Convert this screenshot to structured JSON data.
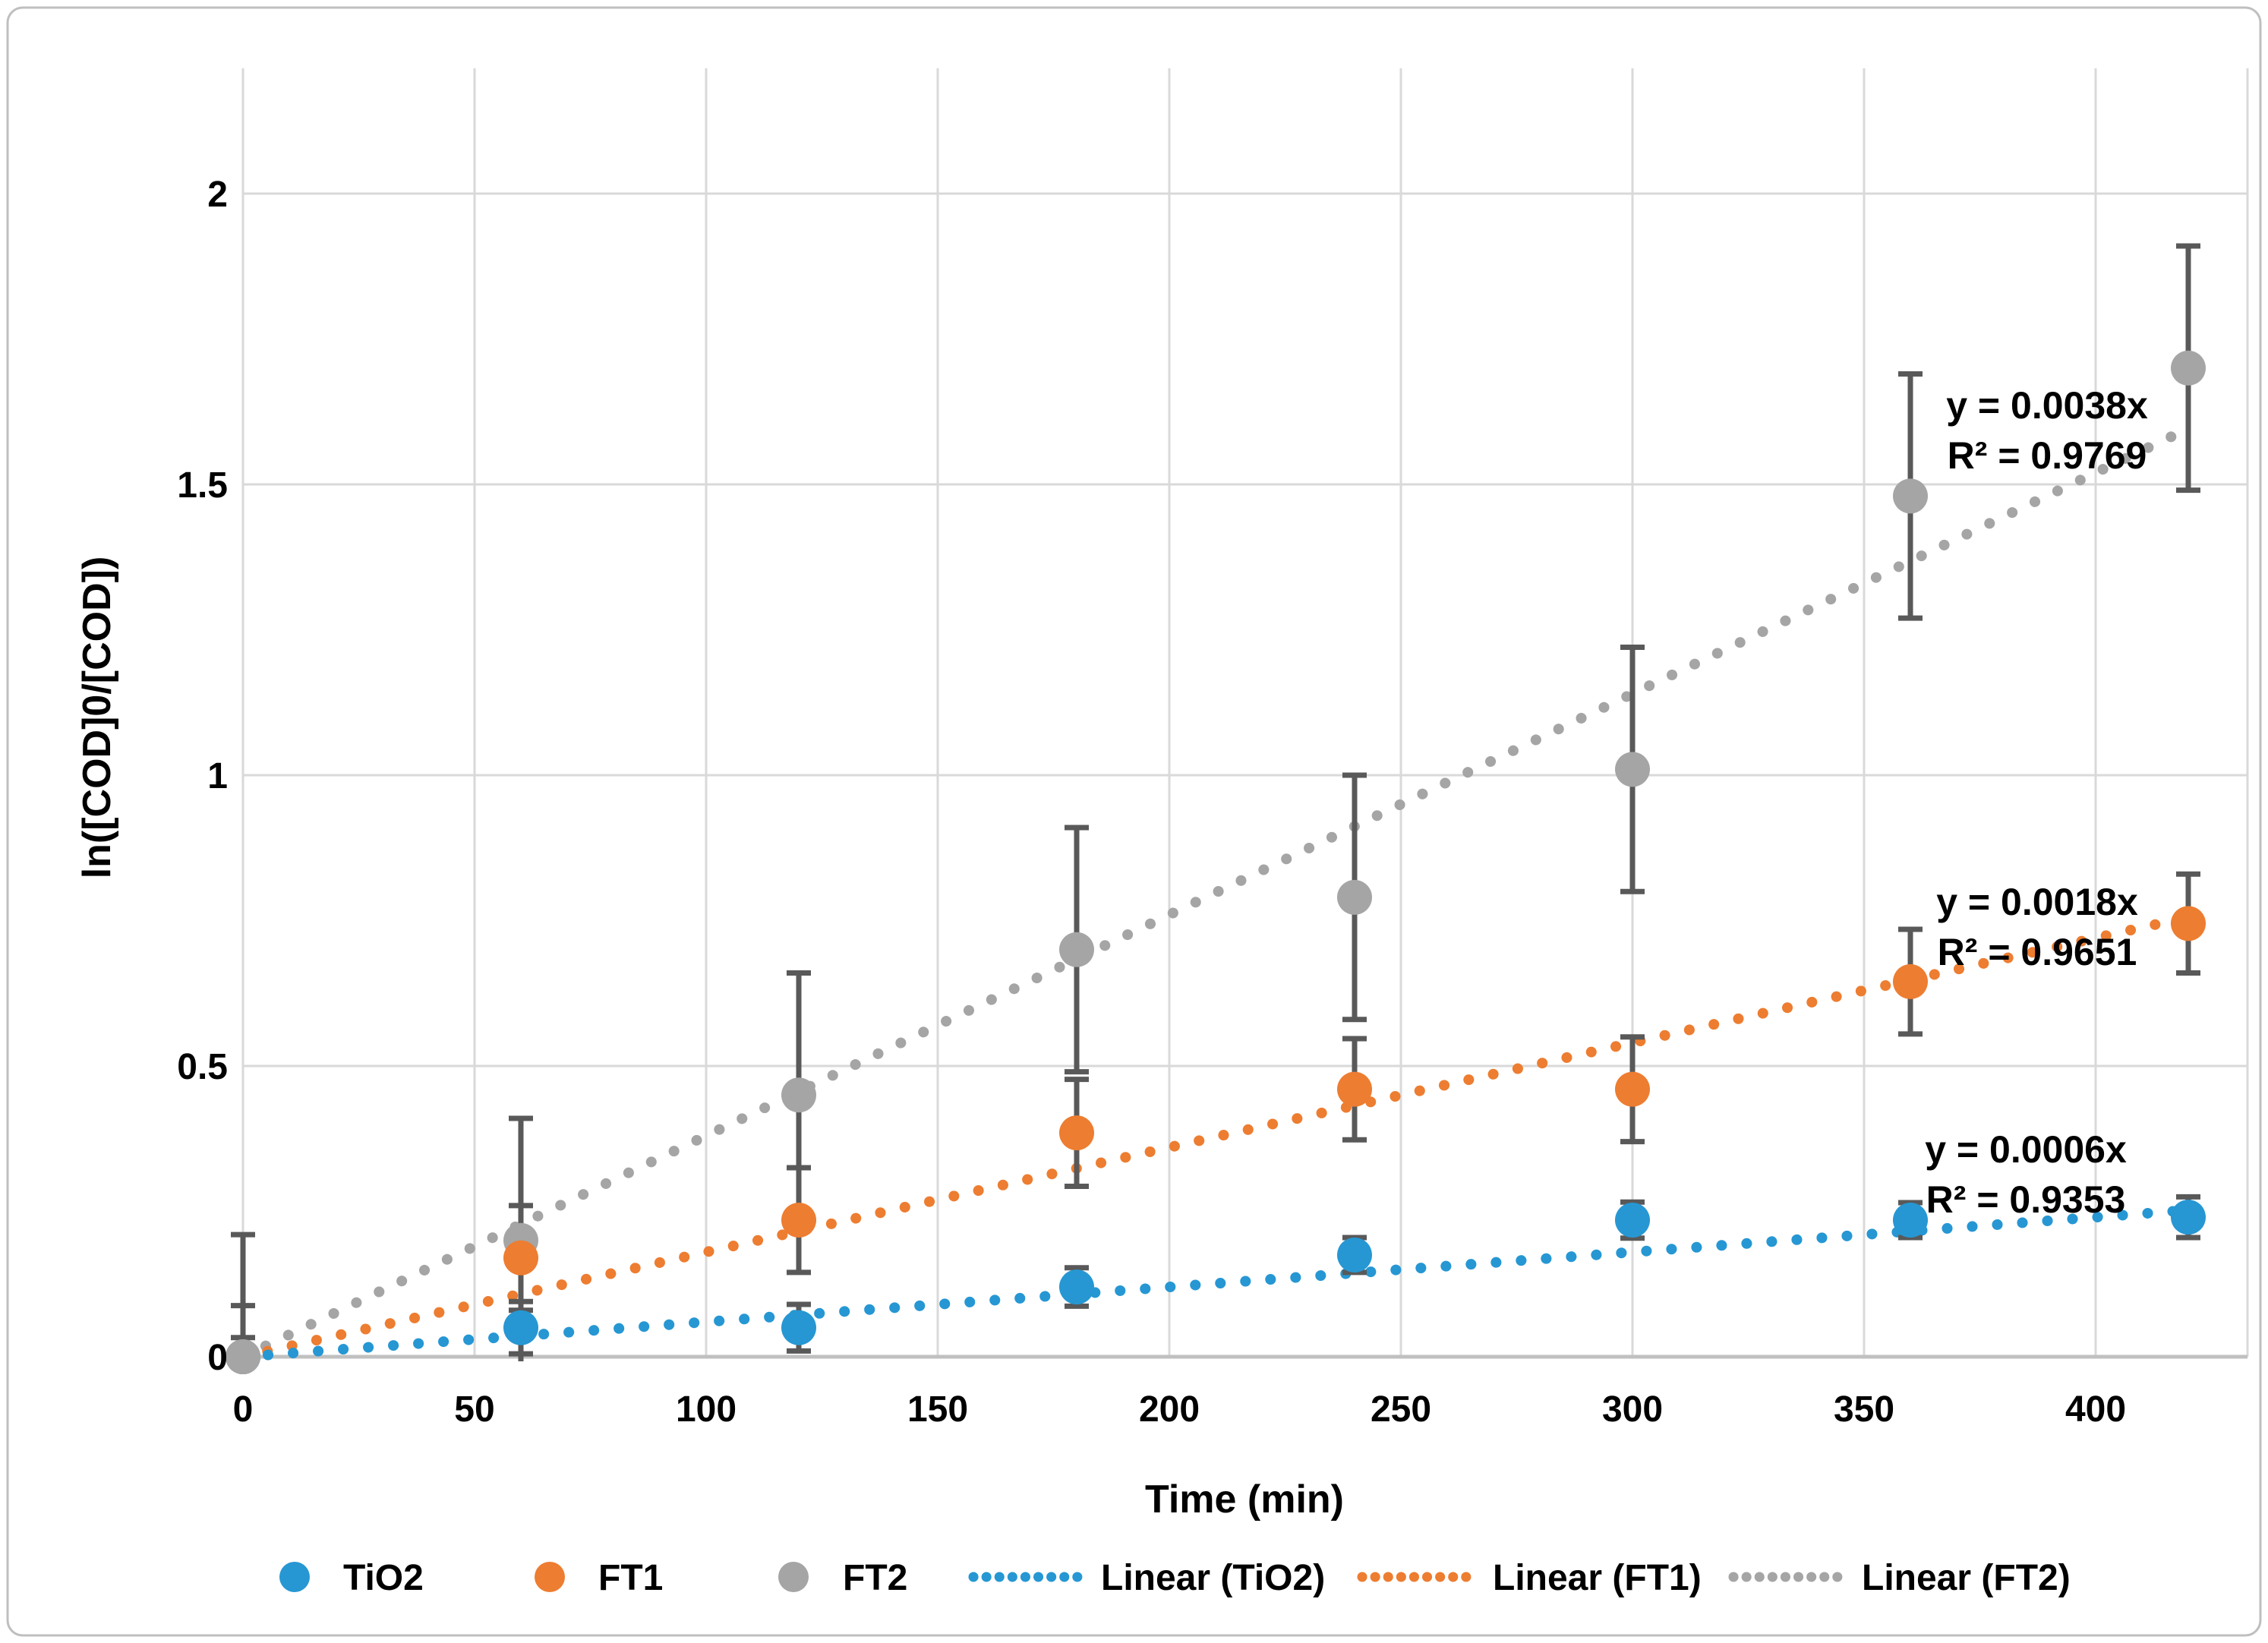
{
  "chart_data": {
    "type": "scatter",
    "title": "",
    "xlabel": "Time (min)",
    "ylabel": "ln([COD]0/[COD])",
    "x_ticks": [
      0,
      50,
      100,
      150,
      200,
      250,
      300,
      350,
      400
    ],
    "x_tick_labels": [
      "0",
      "50",
      "100",
      "150",
      "200",
      "250",
      "300",
      "350",
      "400"
    ],
    "y_ticks": [
      0,
      0.5,
      1,
      1.5,
      2
    ],
    "y_tick_labels": [
      "0",
      "0.5",
      "1",
      "1.5",
      "2"
    ],
    "xlim": [
      0,
      432
    ],
    "ylim": [
      0,
      2.22
    ],
    "grid": true,
    "legend_position": "bottom",
    "x": [
      0,
      60,
      120,
      180,
      240,
      300,
      360,
      420
    ],
    "series": [
      {
        "name": "TiO2",
        "color": "#2697D3",
        "values": [
          0,
          0.05,
          0.05,
          0.12,
          0.175,
          0.235,
          0.235,
          0.24
        ],
        "errors": [
          0.033,
          0.045,
          0.04,
          0.033,
          0.03,
          0.031,
          0.03,
          0.035
        ],
        "trend": {
          "slope": 0.0006,
          "eq": "y = 0.0006x",
          "r2": "R² = 0.9353",
          "x_end": 421
        }
      },
      {
        "name": "FT1",
        "color": "#ED7D31",
        "values": [
          0,
          0.17,
          0.235,
          0.385,
          0.46,
          0.46,
          0.645,
          0.745
        ],
        "errors": [
          0.088,
          0.09,
          0.09,
          0.092,
          0.087,
          0.09,
          0.09,
          0.085
        ],
        "trend": {
          "slope": 0.0018,
          "eq": "y = 0.0018x",
          "r2": "R² = 0.9651",
          "x_end": 421
        }
      },
      {
        "name": "FT2",
        "color": "#A5A5A5",
        "values": [
          0,
          0.2,
          0.45,
          0.7,
          0.79,
          1.01,
          1.48,
          1.7
        ],
        "errors": [
          0.21,
          0.21,
          0.21,
          0.21,
          0.21,
          0.21,
          0.21,
          0.21
        ],
        "trend": {
          "slope": 0.0038,
          "eq": "y = 0.0038x",
          "r2": "R² = 0.9769",
          "x_end": 421
        }
      }
    ],
    "legend": [
      "TiO2",
      "FT1",
      "FT2",
      "Linear (TiO2)",
      "Linear (FT1)",
      "Linear (FT2)"
    ],
    "colors": {
      "error_bar": "#595959",
      "gridline": "#D9D9D9",
      "axis_line": "#C0C0C0",
      "chart_border": "#BFBFBF",
      "text": "#000000"
    }
  }
}
